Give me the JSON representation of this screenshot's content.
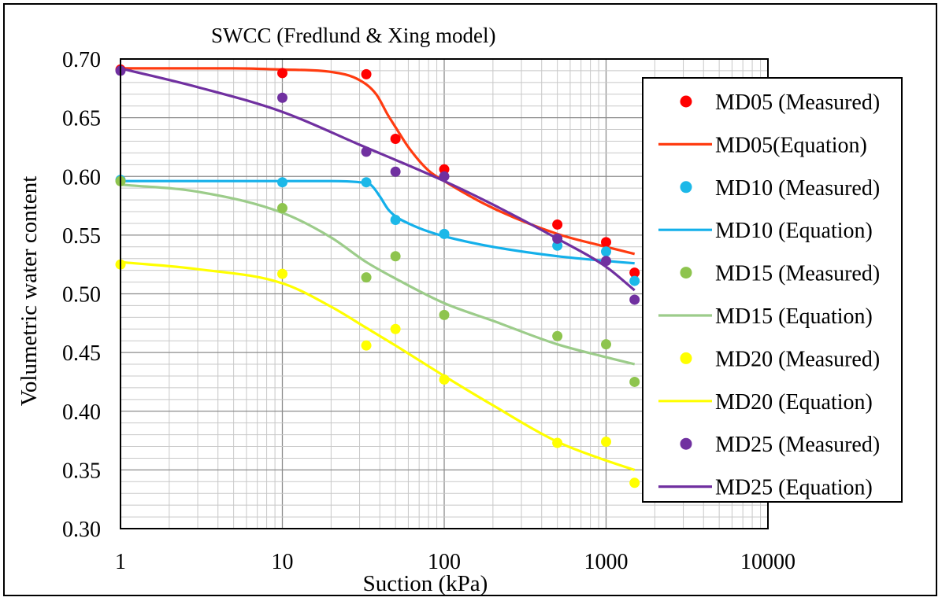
{
  "chart_data": {
    "type": "scatter",
    "title": "SWCC (Fredlund & Xing model)",
    "xlabel": "Suction (kPa)",
    "ylabel": "Volumetric water content",
    "xscale": "log",
    "xlim": [
      1,
      10000
    ],
    "ylim": [
      0.3,
      0.7
    ],
    "x_ticks": [
      "1",
      "10",
      "100",
      "1000",
      "10000"
    ],
    "y_ticks": [
      "0.30",
      "0.35",
      "0.40",
      "0.45",
      "0.50",
      "0.55",
      "0.60",
      "0.65",
      "0.70"
    ],
    "grid": true,
    "legend_position": "right",
    "series": [
      {
        "name": "MD05 (Measured)",
        "kind": "points",
        "color": "#ff0000",
        "x": [
          1,
          10,
          33,
          50,
          100,
          500,
          1000,
          1500
        ],
        "y": [
          0.691,
          0.688,
          0.687,
          0.632,
          0.606,
          0.559,
          0.544,
          0.518
        ]
      },
      {
        "name": "MD05(Equation)",
        "kind": "line",
        "color": "#ff3b10",
        "x": [
          1,
          5,
          10,
          20,
          30,
          38,
          45,
          50,
          60,
          80,
          100,
          200,
          500,
          1000,
          1500
        ],
        "y": [
          0.692,
          0.692,
          0.691,
          0.689,
          0.682,
          0.67,
          0.652,
          0.642,
          0.625,
          0.605,
          0.596,
          0.573,
          0.551,
          0.54,
          0.534
        ]
      },
      {
        "name": "MD10 (Measured)",
        "kind": "points",
        "color": "#1cb8e8",
        "x": [
          1,
          10,
          33,
          50,
          100,
          500,
          1000,
          1500
        ],
        "y": [
          0.597,
          0.595,
          0.595,
          0.563,
          0.551,
          0.541,
          0.536,
          0.511
        ]
      },
      {
        "name": "MD10 (Equation)",
        "kind": "line",
        "color": "#14b0ea",
        "x": [
          1,
          10,
          20,
          30,
          35,
          40,
          45,
          50,
          60,
          80,
          100,
          200,
          500,
          1000,
          1500
        ],
        "y": [
          0.596,
          0.596,
          0.596,
          0.595,
          0.593,
          0.583,
          0.572,
          0.566,
          0.56,
          0.553,
          0.549,
          0.54,
          0.532,
          0.528,
          0.526
        ]
      },
      {
        "name": "MD15 (Measured)",
        "kind": "points",
        "color": "#8ec44e",
        "x": [
          1,
          10,
          33,
          50,
          100,
          500,
          1000,
          1500
        ],
        "y": [
          0.596,
          0.573,
          0.514,
          0.532,
          0.482,
          0.464,
          0.457,
          0.425
        ]
      },
      {
        "name": "MD15 (Equation)",
        "kind": "line",
        "color": "#9ccc8a",
        "x": [
          1,
          3,
          10,
          20,
          33,
          50,
          100,
          200,
          500,
          1000,
          1500
        ],
        "y": [
          0.593,
          0.587,
          0.569,
          0.548,
          0.527,
          0.513,
          0.492,
          0.477,
          0.457,
          0.446,
          0.44
        ]
      },
      {
        "name": "MD20 (Measured)",
        "kind": "points",
        "color": "#ffff00",
        "x": [
          1,
          10,
          33,
          50,
          100,
          500,
          1000,
          1500
        ],
        "y": [
          0.525,
          0.517,
          0.456,
          0.47,
          0.427,
          0.373,
          0.374,
          0.339
        ]
      },
      {
        "name": "MD20 (Equation)",
        "kind": "line",
        "color": "#ffff00",
        "x": [
          1,
          3,
          10,
          20,
          33,
          50,
          100,
          200,
          500,
          1000,
          1500
        ],
        "y": [
          0.527,
          0.521,
          0.509,
          0.489,
          0.471,
          0.456,
          0.43,
          0.405,
          0.374,
          0.358,
          0.35
        ]
      },
      {
        "name": "MD25 (Measured)",
        "kind": "points",
        "color": "#7030a0",
        "x": [
          1,
          10,
          33,
          50,
          100,
          500,
          1000,
          1500
        ],
        "y": [
          0.69,
          0.667,
          0.621,
          0.604,
          0.6,
          0.547,
          0.528,
          0.495
        ]
      },
      {
        "name": "MD25 (Equation)",
        "kind": "line",
        "color": "#7030a0",
        "x": [
          1,
          3,
          10,
          30,
          100,
          200,
          500,
          1000,
          1500
        ],
        "y": [
          0.692,
          0.676,
          0.655,
          0.627,
          0.596,
          0.576,
          0.547,
          0.523,
          0.503
        ]
      }
    ]
  }
}
